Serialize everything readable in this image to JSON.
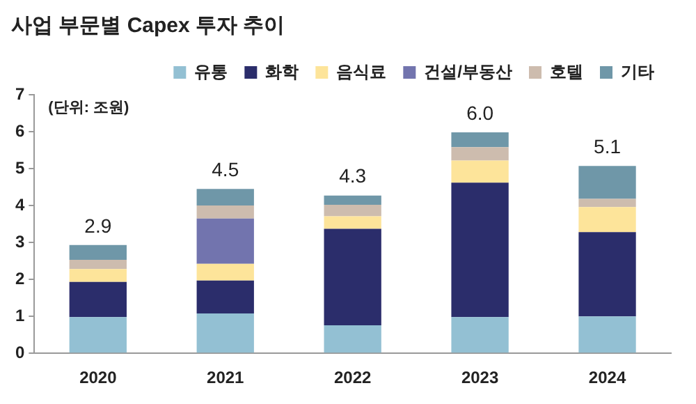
{
  "chart_data": {
    "type": "bar",
    "title": "사업 부문별 Capex 투자 추이",
    "stacked": true,
    "categories": [
      "2020",
      "2021",
      "2022",
      "2023",
      "2024"
    ],
    "series": [
      {
        "name": "유통",
        "color": "#93c0d3",
        "values": [
          0.98,
          1.08,
          0.76,
          0.98,
          1.0
        ]
      },
      {
        "name": "화학",
        "color": "#2b2d6b",
        "values": [
          0.95,
          0.89,
          2.61,
          3.64,
          2.28
        ]
      },
      {
        "name": "음식료",
        "color": "#fde49a",
        "values": [
          0.35,
          0.45,
          0.34,
          0.6,
          0.68
        ]
      },
      {
        "name": "건설/부동산",
        "color": "#7274ae",
        "values": [
          null,
          1.23,
          null,
          null,
          null
        ]
      },
      {
        "name": "호텔",
        "color": "#cdbcae",
        "values": [
          0.25,
          0.35,
          0.31,
          0.36,
          0.22
        ]
      },
      {
        "name": "기타",
        "color": "#6f97a8",
        "values": [
          0.4,
          0.45,
          0.25,
          0.4,
          0.89
        ]
      }
    ],
    "totals": [
      "2.9",
      "4.5",
      "4.3",
      "6.0",
      "5.1"
    ],
    "annotations": [
      "(단위: 조원)"
    ],
    "ylim": [
      0,
      7
    ],
    "yticks": [
      0,
      1,
      2,
      3,
      4,
      5,
      6,
      7
    ],
    "grid": false,
    "legend": "top"
  }
}
